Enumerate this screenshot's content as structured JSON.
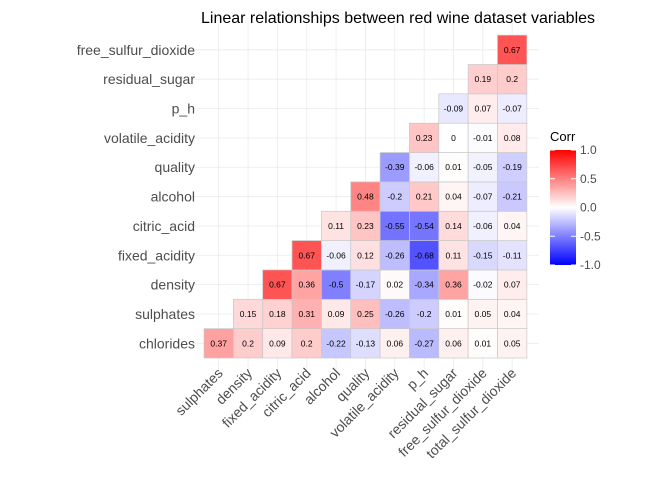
{
  "chart_data": {
    "type": "heatmap",
    "title": "Linear relationships between red wine dataset variables",
    "x_categories": [
      "sulphates",
      "density",
      "fixed_acidity",
      "citric_acid",
      "alcohol",
      "quality",
      "volatile_acidity",
      "p_h",
      "residual_sugar",
      "free_sulfur_dioxide",
      "total_sulfur_dioxide"
    ],
    "y_categories": [
      "chlorides",
      "sulphates",
      "density",
      "fixed_acidity",
      "citric_acid",
      "alcohol",
      "quality",
      "volatile_acidity",
      "p_h",
      "residual_sugar",
      "free_sulfur_dioxide"
    ],
    "cells": [
      {
        "x": "sulphates",
        "y": "chlorides",
        "value": 0.37
      },
      {
        "x": "density",
        "y": "chlorides",
        "value": 0.2
      },
      {
        "x": "fixed_acidity",
        "y": "chlorides",
        "value": 0.09
      },
      {
        "x": "citric_acid",
        "y": "chlorides",
        "value": 0.2
      },
      {
        "x": "alcohol",
        "y": "chlorides",
        "value": -0.22
      },
      {
        "x": "quality",
        "y": "chlorides",
        "value": -0.13
      },
      {
        "x": "volatile_acidity",
        "y": "chlorides",
        "value": 0.06
      },
      {
        "x": "p_h",
        "y": "chlorides",
        "value": -0.27
      },
      {
        "x": "residual_sugar",
        "y": "chlorides",
        "value": 0.06
      },
      {
        "x": "free_sulfur_dioxide",
        "y": "chlorides",
        "value": 0.01
      },
      {
        "x": "total_sulfur_dioxide",
        "y": "chlorides",
        "value": 0.05
      },
      {
        "x": "density",
        "y": "sulphates",
        "value": 0.15
      },
      {
        "x": "fixed_acidity",
        "y": "sulphates",
        "value": 0.18
      },
      {
        "x": "citric_acid",
        "y": "sulphates",
        "value": 0.31
      },
      {
        "x": "alcohol",
        "y": "sulphates",
        "value": 0.09
      },
      {
        "x": "quality",
        "y": "sulphates",
        "value": 0.25
      },
      {
        "x": "volatile_acidity",
        "y": "sulphates",
        "value": -0.26
      },
      {
        "x": "p_h",
        "y": "sulphates",
        "value": -0.2
      },
      {
        "x": "residual_sugar",
        "y": "sulphates",
        "value": 0.01
      },
      {
        "x": "free_sulfur_dioxide",
        "y": "sulphates",
        "value": 0.05
      },
      {
        "x": "total_sulfur_dioxide",
        "y": "sulphates",
        "value": 0.04
      },
      {
        "x": "fixed_acidity",
        "y": "density",
        "value": 0.67
      },
      {
        "x": "citric_acid",
        "y": "density",
        "value": 0.36
      },
      {
        "x": "alcohol",
        "y": "density",
        "value": -0.5
      },
      {
        "x": "quality",
        "y": "density",
        "value": -0.17
      },
      {
        "x": "volatile_acidity",
        "y": "density",
        "value": 0.02
      },
      {
        "x": "p_h",
        "y": "density",
        "value": -0.34
      },
      {
        "x": "residual_sugar",
        "y": "density",
        "value": 0.36
      },
      {
        "x": "free_sulfur_dioxide",
        "y": "density",
        "value": -0.02
      },
      {
        "x": "total_sulfur_dioxide",
        "y": "density",
        "value": 0.07
      },
      {
        "x": "citric_acid",
        "y": "fixed_acidity",
        "value": 0.67
      },
      {
        "x": "alcohol",
        "y": "fixed_acidity",
        "value": -0.06
      },
      {
        "x": "quality",
        "y": "fixed_acidity",
        "value": 0.12
      },
      {
        "x": "volatile_acidity",
        "y": "fixed_acidity",
        "value": -0.26
      },
      {
        "x": "p_h",
        "y": "fixed_acidity",
        "value": -0.68
      },
      {
        "x": "residual_sugar",
        "y": "fixed_acidity",
        "value": 0.11
      },
      {
        "x": "free_sulfur_dioxide",
        "y": "fixed_acidity",
        "value": -0.15
      },
      {
        "x": "total_sulfur_dioxide",
        "y": "fixed_acidity",
        "value": -0.11
      },
      {
        "x": "alcohol",
        "y": "citric_acid",
        "value": 0.11
      },
      {
        "x": "quality",
        "y": "citric_acid",
        "value": 0.23
      },
      {
        "x": "volatile_acidity",
        "y": "citric_acid",
        "value": -0.55
      },
      {
        "x": "p_h",
        "y": "citric_acid",
        "value": -0.54
      },
      {
        "x": "residual_sugar",
        "y": "citric_acid",
        "value": 0.14
      },
      {
        "x": "free_sulfur_dioxide",
        "y": "citric_acid",
        "value": -0.06
      },
      {
        "x": "total_sulfur_dioxide",
        "y": "citric_acid",
        "value": 0.04
      },
      {
        "x": "quality",
        "y": "alcohol",
        "value": 0.48
      },
      {
        "x": "volatile_acidity",
        "y": "alcohol",
        "value": -0.2
      },
      {
        "x": "p_h",
        "y": "alcohol",
        "value": 0.21
      },
      {
        "x": "residual_sugar",
        "y": "alcohol",
        "value": 0.04
      },
      {
        "x": "free_sulfur_dioxide",
        "y": "alcohol",
        "value": -0.07
      },
      {
        "x": "total_sulfur_dioxide",
        "y": "alcohol",
        "value": -0.21
      },
      {
        "x": "volatile_acidity",
        "y": "quality",
        "value": -0.39
      },
      {
        "x": "p_h",
        "y": "quality",
        "value": -0.06
      },
      {
        "x": "residual_sugar",
        "y": "quality",
        "value": 0.01
      },
      {
        "x": "free_sulfur_dioxide",
        "y": "quality",
        "value": -0.05
      },
      {
        "x": "total_sulfur_dioxide",
        "y": "quality",
        "value": -0.19
      },
      {
        "x": "p_h",
        "y": "volatile_acidity",
        "value": 0.23
      },
      {
        "x": "residual_sugar",
        "y": "volatile_acidity",
        "value": 0
      },
      {
        "x": "free_sulfur_dioxide",
        "y": "volatile_acidity",
        "value": -0.01
      },
      {
        "x": "total_sulfur_dioxide",
        "y": "volatile_acidity",
        "value": 0.08
      },
      {
        "x": "residual_sugar",
        "y": "p_h",
        "value": -0.09
      },
      {
        "x": "free_sulfur_dioxide",
        "y": "p_h",
        "value": 0.07
      },
      {
        "x": "total_sulfur_dioxide",
        "y": "p_h",
        "value": -0.07
      },
      {
        "x": "free_sulfur_dioxide",
        "y": "residual_sugar",
        "value": 0.19
      },
      {
        "x": "total_sulfur_dioxide",
        "y": "residual_sugar",
        "value": 0.2
      },
      {
        "x": "total_sulfur_dioxide",
        "y": "free_sulfur_dioxide",
        "value": 0.67
      }
    ],
    "legend": {
      "title": "Corr",
      "range": [
        -1,
        1
      ],
      "ticks": [
        1.0,
        0.5,
        0.0,
        -0.5,
        -1.0
      ],
      "tick_labels": [
        "1.0",
        "0.5",
        "0.0",
        "-0.5",
        "-1.0"
      ],
      "colors": {
        "low": "#0000ff",
        "mid": "#ffffff",
        "high": "#ff0000"
      },
      "placement": "right"
    },
    "grid": true,
    "colors": {
      "cell_border": "#c8c8c8",
      "grid": "#ebebeb"
    }
  }
}
